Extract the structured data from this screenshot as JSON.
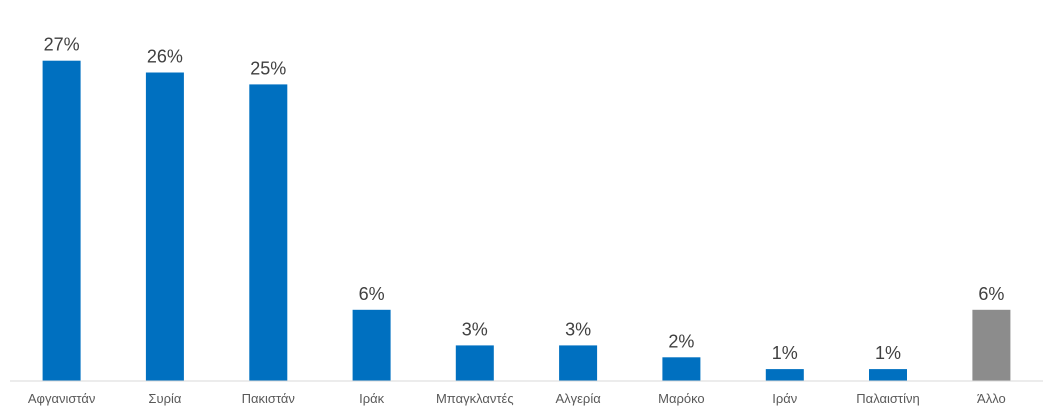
{
  "chart_data": {
    "type": "bar",
    "categories": [
      "Αφγανιστάν",
      "Συρία",
      "Πακιστάν",
      "Ιράκ",
      "Μπαγκλαντές",
      "Αλγερία",
      "Μαρόκο",
      "Ιράν",
      "Παλαιστίνη",
      "Άλλο"
    ],
    "values": [
      27,
      26,
      25,
      6,
      3,
      3,
      2,
      1,
      1,
      6
    ],
    "data_labels": [
      "27%",
      "26%",
      "25%",
      "6%",
      "3%",
      "3%",
      "2%",
      "1%",
      "1%",
      "6%"
    ],
    "bar_colors": [
      "#0070C0",
      "#0070C0",
      "#0070C0",
      "#0070C0",
      "#0070C0",
      "#0070C0",
      "#0070C0",
      "#0070C0",
      "#0070C0",
      "#8C8C8C"
    ],
    "unit": "%",
    "ylim": [
      0,
      29.5
    ],
    "grid": false,
    "legend": "none",
    "axis_color": "#D9D9D9",
    "label_color": "#404040",
    "category_label_color": "#595959"
  }
}
